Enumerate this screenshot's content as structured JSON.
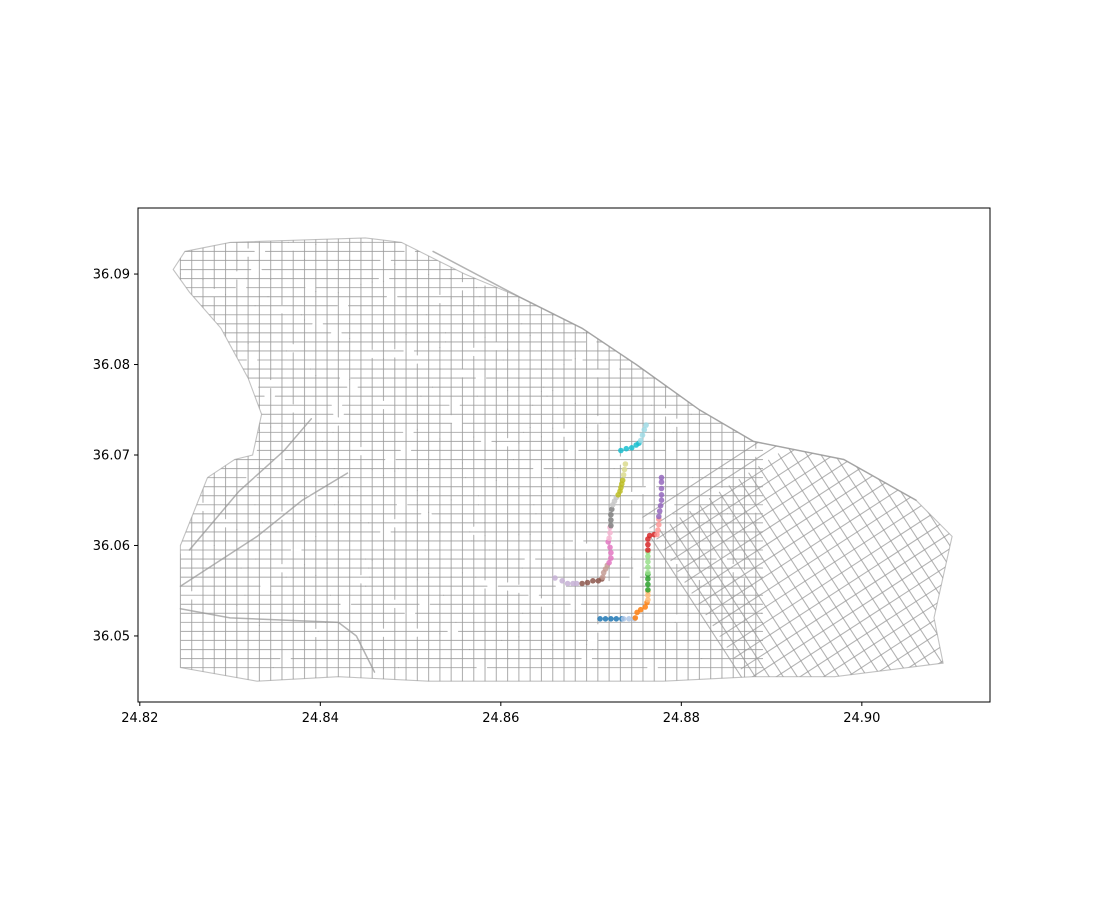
{
  "chart_data": {
    "type": "scatter",
    "title": "",
    "xlabel": "",
    "ylabel": "",
    "xlim": [
      24.8198,
      24.9142
    ],
    "ylim": [
      36.0427,
      36.0973
    ],
    "xticks": [
      24.82,
      24.84,
      24.86,
      24.88,
      24.9
    ],
    "xtick_labels": [
      "24.82",
      "24.84",
      "24.86",
      "24.88",
      "24.90"
    ],
    "yticks": [
      36.05,
      36.06,
      36.07,
      36.08,
      36.09
    ],
    "ytick_labels": [
      "36.05",
      "36.06",
      "36.07",
      "36.08",
      "36.09"
    ],
    "grid": false,
    "legend": "none",
    "background_network": {
      "description_of_layer": "street network",
      "color": "#999999",
      "region": {
        "outline": [
          [
            24.8245,
            36.0465
          ],
          [
            24.8245,
            36.06
          ],
          [
            24.8275,
            36.0675
          ],
          [
            24.8305,
            36.0695
          ],
          [
            24.8325,
            36.07
          ],
          [
            24.8335,
            36.0745
          ],
          [
            24.832,
            36.0785
          ],
          [
            24.829,
            36.084
          ],
          [
            24.8255,
            36.088
          ],
          [
            24.8237,
            36.0905
          ],
          [
            24.825,
            36.0925
          ],
          [
            24.83,
            36.0935
          ],
          [
            24.845,
            36.094
          ],
          [
            24.849,
            36.0935
          ],
          [
            24.853,
            36.0915
          ],
          [
            24.856,
            36.09
          ],
          [
            24.862,
            36.0875
          ],
          [
            24.869,
            36.084
          ],
          [
            24.875,
            36.08
          ],
          [
            24.882,
            36.075
          ],
          [
            24.888,
            36.0715
          ],
          [
            24.898,
            36.0695
          ],
          [
            24.906,
            36.065
          ],
          [
            24.91,
            36.061
          ],
          [
            24.908,
            36.052
          ],
          [
            24.909,
            36.047
          ],
          [
            24.897,
            36.0455
          ],
          [
            24.888,
            36.0455
          ],
          [
            24.878,
            36.045
          ],
          [
            24.865,
            36.045
          ],
          [
            24.852,
            36.045
          ],
          [
            24.842,
            36.0455
          ],
          [
            24.833,
            36.045
          ],
          [
            24.8245,
            36.0465
          ]
        ],
        "grid_spacing": [
          0.00125,
          0.001
        ],
        "rotated_patch": {
          "center": [
            24.9015,
            36.056
          ],
          "angle_deg": 33,
          "spacing": 0.0013
        }
      }
    },
    "series": [
      {
        "color": "#1f77b4",
        "points": [
          [
            24.871,
            36.0519
          ],
          [
            24.8716,
            36.0519
          ],
          [
            24.8722,
            36.0519
          ],
          [
            24.8728,
            36.0519
          ],
          [
            24.8734,
            36.0519
          ]
        ]
      },
      {
        "color": "#aec7e8",
        "points": [
          [
            24.8736,
            36.0519
          ],
          [
            24.8742,
            36.0519
          ],
          [
            24.8748,
            36.0519
          ]
        ]
      },
      {
        "color": "#ff7f0e",
        "points": [
          [
            24.8749,
            36.052
          ],
          [
            24.8751,
            36.0526
          ],
          [
            24.8755,
            36.0529
          ],
          [
            24.876,
            36.0532
          ],
          [
            24.8762,
            36.0537
          ]
        ]
      },
      {
        "color": "#ffbb78",
        "points": [
          [
            24.8763,
            36.054
          ],
          [
            24.8763,
            36.0545
          ],
          [
            24.8763,
            36.0549
          ]
        ]
      },
      {
        "color": "#2ca02c",
        "points": [
          [
            24.8763,
            36.0551
          ],
          [
            24.8763,
            36.0557
          ],
          [
            24.8763,
            36.0563
          ],
          [
            24.8763,
            36.0568
          ]
        ]
      },
      {
        "color": "#98df8a",
        "points": [
          [
            24.8763,
            36.057
          ],
          [
            24.8763,
            36.0576
          ],
          [
            24.8763,
            36.0582
          ],
          [
            24.8763,
            36.0588
          ],
          [
            24.8763,
            36.0593
          ]
        ]
      },
      {
        "color": "#d62728",
        "points": [
          [
            24.8763,
            36.0595
          ],
          [
            24.8763,
            36.0601
          ],
          [
            24.8763,
            36.0607
          ],
          [
            24.8765,
            36.0611
          ],
          [
            24.877,
            36.0612
          ]
        ]
      },
      {
        "color": "#ff9896",
        "points": [
          [
            24.8773,
            36.0612
          ],
          [
            24.8774,
            36.0617
          ],
          [
            24.8775,
            36.0623
          ],
          [
            24.8775,
            36.0629
          ]
        ]
      },
      {
        "color": "#9467bd",
        "points": [
          [
            24.8775,
            36.0632
          ],
          [
            24.8776,
            36.0638
          ],
          [
            24.8777,
            36.0644
          ],
          [
            24.8778,
            36.065
          ],
          [
            24.8778,
            36.0656
          ],
          [
            24.8778,
            36.0663
          ],
          [
            24.8778,
            36.067
          ],
          [
            24.8778,
            36.0675
          ]
        ]
      },
      {
        "color": "#c5b0d5",
        "points": [
          [
            24.866,
            36.0564
          ],
          [
            24.8668,
            36.0561
          ],
          [
            24.8674,
            36.0558
          ],
          [
            24.868,
            36.0558
          ],
          [
            24.8684,
            36.0558
          ]
        ]
      },
      {
        "color": "#8c564b",
        "points": [
          [
            24.869,
            36.0558
          ],
          [
            24.8696,
            36.0559
          ],
          [
            24.8702,
            36.0561
          ],
          [
            24.8708,
            36.0561
          ],
          [
            24.8712,
            36.0563
          ]
        ]
      },
      {
        "color": "#c49c94",
        "points": [
          [
            24.8713,
            36.0565
          ],
          [
            24.8714,
            36.057
          ],
          [
            24.8716,
            36.0574
          ],
          [
            24.8718,
            36.0578
          ]
        ]
      },
      {
        "color": "#e377c2",
        "points": [
          [
            24.872,
            36.0581
          ],
          [
            24.8722,
            36.0586
          ],
          [
            24.8722,
            36.0592
          ],
          [
            24.8721,
            36.0598
          ],
          [
            24.8719,
            36.0604
          ]
        ]
      },
      {
        "color": "#f7b6d2",
        "points": [
          [
            24.872,
            36.0608
          ],
          [
            24.8721,
            36.0614
          ],
          [
            24.8721,
            36.062
          ]
        ]
      },
      {
        "color": "#7f7f7f",
        "points": [
          [
            24.8722,
            36.0622
          ],
          [
            24.8722,
            36.0628
          ],
          [
            24.8722,
            36.0634
          ],
          [
            24.8723,
            36.064
          ]
        ]
      },
      {
        "color": "#c7c7c7",
        "points": [
          [
            24.8724,
            36.0645
          ],
          [
            24.8726,
            36.0649
          ],
          [
            24.8728,
            36.0653
          ]
        ]
      },
      {
        "color": "#bcbd22",
        "points": [
          [
            24.873,
            36.0656
          ],
          [
            24.8732,
            36.066
          ],
          [
            24.8733,
            36.0664
          ],
          [
            24.8734,
            36.0668
          ],
          [
            24.8735,
            36.0672
          ]
        ]
      },
      {
        "color": "#dbdb8d",
        "points": [
          [
            24.8736,
            36.0678
          ],
          [
            24.8737,
            36.0684
          ],
          [
            24.8738,
            36.069
          ]
        ]
      },
      {
        "color": "#17becf",
        "points": [
          [
            24.8733,
            36.0705
          ],
          [
            24.8739,
            36.0707
          ],
          [
            24.8745,
            36.0708
          ],
          [
            24.875,
            36.0711
          ],
          [
            24.8753,
            36.0713
          ]
        ]
      },
      {
        "color": "#9edae5",
        "points": [
          [
            24.8755,
            36.0716
          ],
          [
            24.8757,
            36.0722
          ],
          [
            24.8759,
            36.0728
          ],
          [
            24.8761,
            36.0733
          ]
        ]
      }
    ]
  }
}
